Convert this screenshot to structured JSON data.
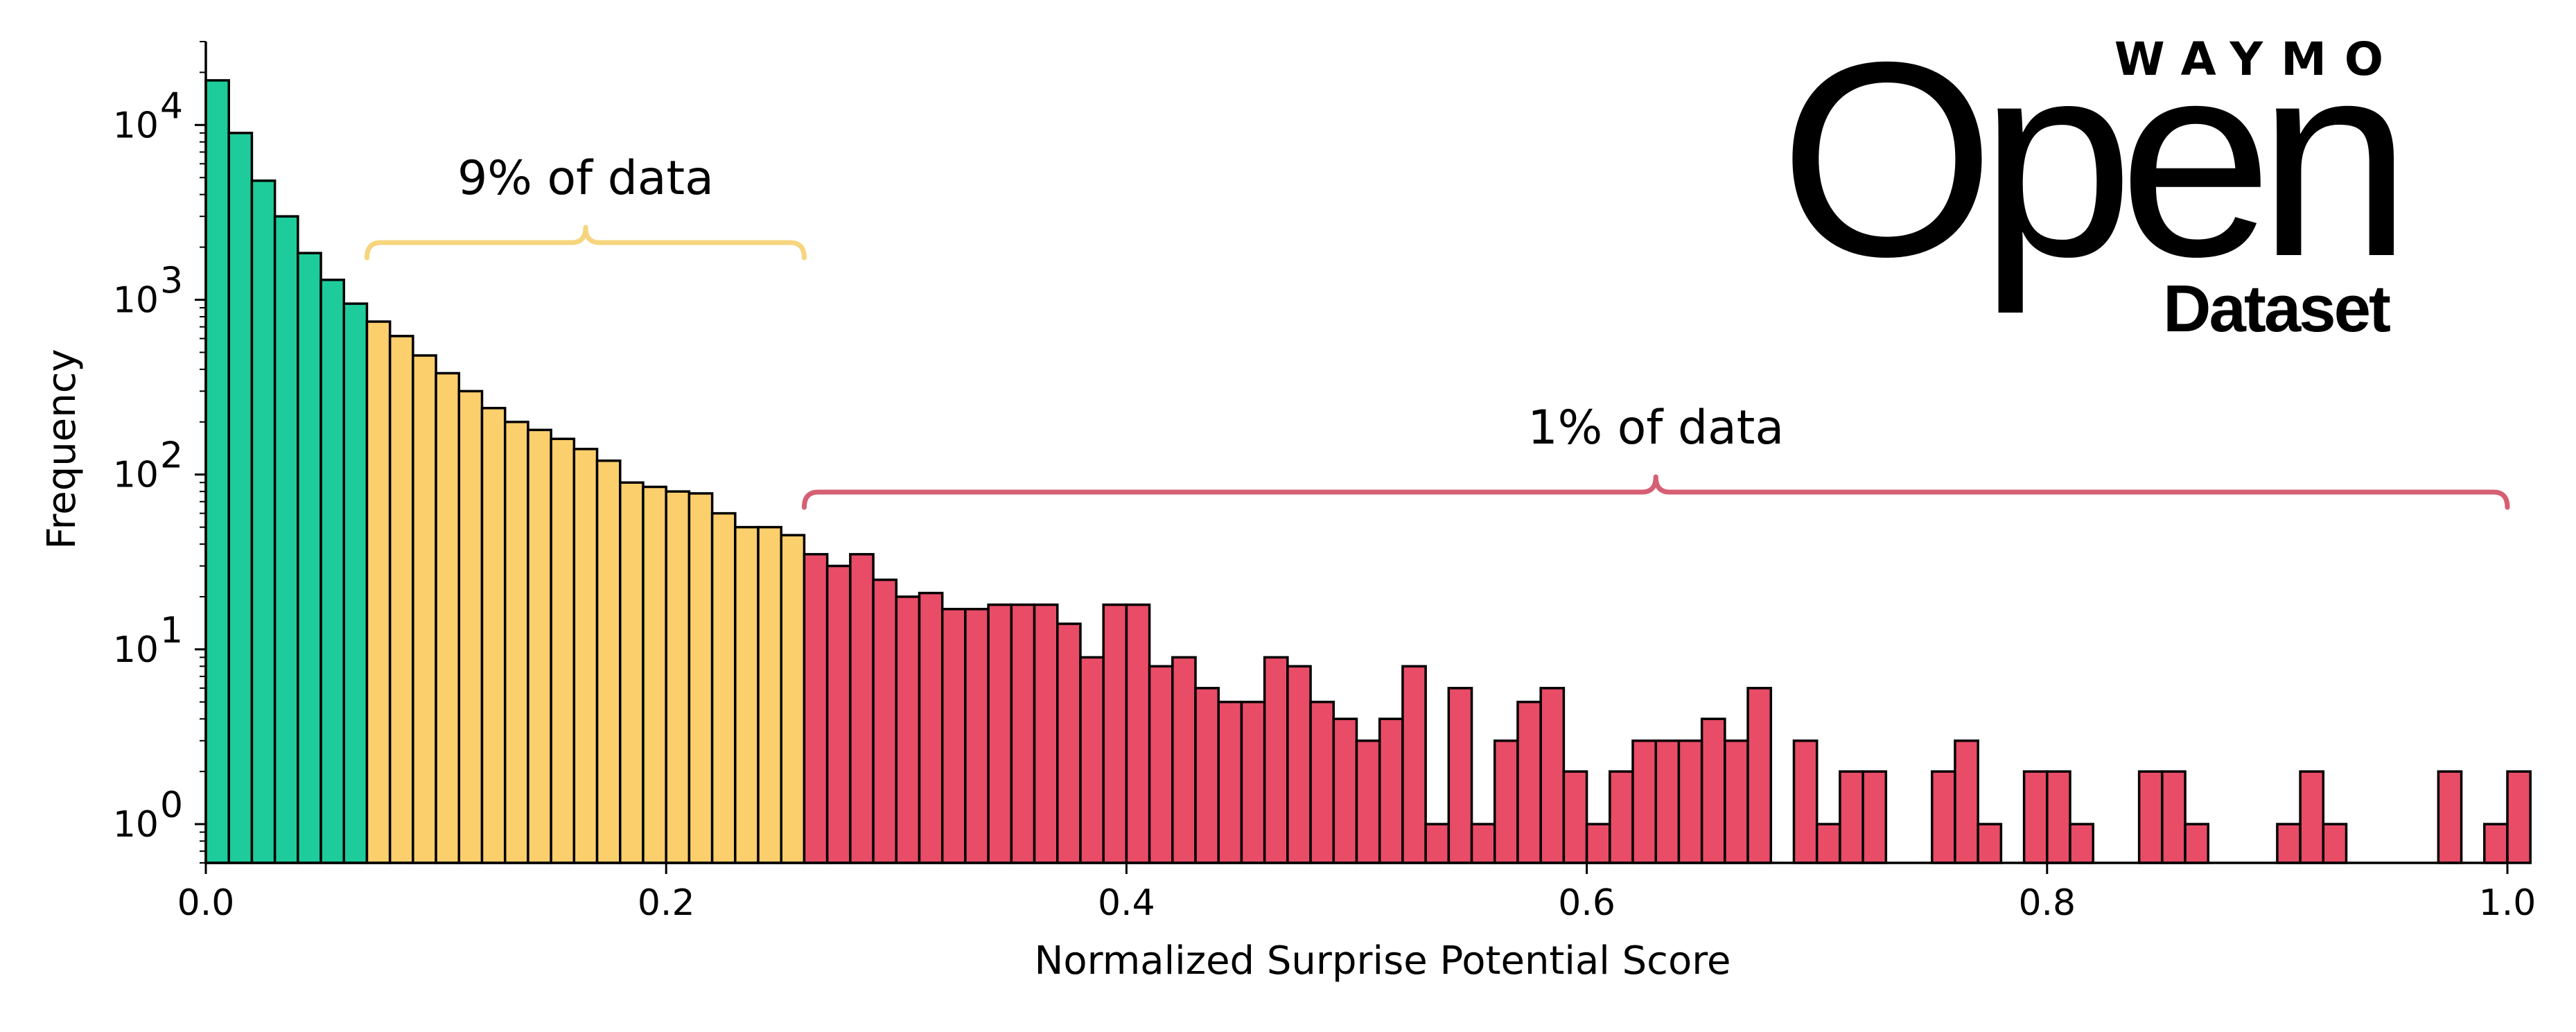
{
  "chart_data": {
    "type": "bar",
    "xlabel": "Normalized Surprise Potential Score",
    "ylabel": "Frequency",
    "yscale": "log",
    "xlim": [
      0.0,
      1.0
    ],
    "ylim": [
      0.6,
      30000
    ],
    "bin_width": 0.01,
    "x_ticks": [
      "0.0",
      "0.2",
      "0.4",
      "0.6",
      "0.8",
      "1.0"
    ],
    "y_ticks": [
      {
        "base": "10",
        "exp": "0"
      },
      {
        "base": "10",
        "exp": "1"
      },
      {
        "base": "10",
        "exp": "2"
      },
      {
        "base": "10",
        "exp": "3"
      },
      {
        "base": "10",
        "exp": "4"
      }
    ],
    "colors": {
      "green": "#1dcc9a",
      "yellow": "#fbcf6c",
      "red": "#e84c67",
      "brace_yellow": "#f6d57e",
      "brace_red": "#d65f74"
    },
    "annotations": [
      {
        "text": "9% of data",
        "x_start": 0.07,
        "x_end": 0.26,
        "color": "yellow"
      },
      {
        "text": "1% of data",
        "x_start": 0.26,
        "x_end": 1.0,
        "color": "red"
      }
    ],
    "values": [
      18000,
      9000,
      4800,
      3000,
      1850,
      1300,
      950,
      750,
      620,
      480,
      380,
      300,
      240,
      200,
      180,
      160,
      140,
      120,
      90,
      85,
      80,
      78,
      60,
      50,
      50,
      45,
      35,
      30,
      35,
      25,
      20,
      21,
      17,
      17,
      18,
      18,
      18,
      14,
      9,
      18,
      18,
      8,
      9,
      6,
      5,
      5,
      9,
      8,
      5,
      4,
      3,
      4,
      8,
      1,
      6,
      1,
      3,
      5,
      6,
      2,
      1,
      2,
      3,
      3,
      3,
      4,
      3,
      6,
      0,
      3,
      1,
      2,
      2,
      0,
      0,
      2,
      3,
      1,
      0,
      2,
      2,
      1,
      0,
      0,
      2,
      2,
      1,
      0,
      0,
      0,
      1,
      2,
      1,
      0,
      0,
      0,
      0,
      2,
      0,
      1,
      2
    ],
    "bin_colors": [
      "green",
      "green",
      "green",
      "green",
      "green",
      "green",
      "green",
      "yellow",
      "yellow",
      "yellow",
      "yellow",
      "yellow",
      "yellow",
      "yellow",
      "yellow",
      "yellow",
      "yellow",
      "yellow",
      "yellow",
      "yellow",
      "yellow",
      "yellow",
      "yellow",
      "yellow",
      "yellow",
      "yellow",
      "red"
    ]
  },
  "logo": {
    "brand": "WAYMO",
    "product": "Open",
    "subtitle": "Dataset"
  }
}
